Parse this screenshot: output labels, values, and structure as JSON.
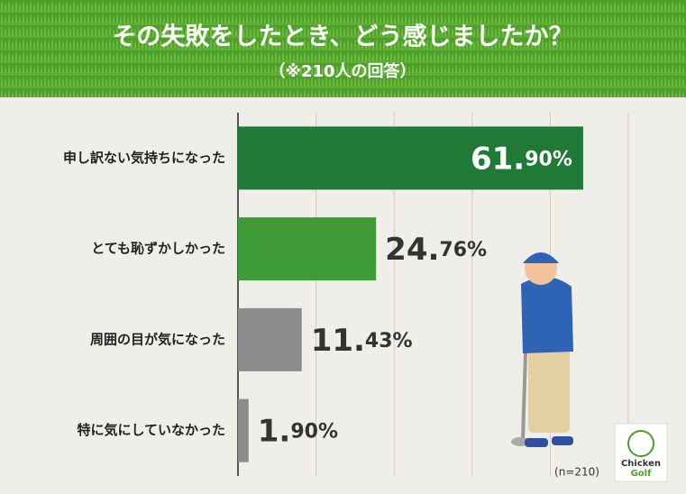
{
  "chart_data": {
    "type": "hbar",
    "title": "その失敗をしたとき、どう感じましたか？",
    "subtitle": "（※210人の回答）",
    "categories": [
      "申し訳ない気持ちになった",
      "とても恥ずかしかった",
      "周囲の目が気になった",
      "特に気にしていなかった"
    ],
    "values": [
      61.9,
      24.76,
      11.43,
      1.9
    ],
    "value_labels": [
      "61.90%",
      "24.76%",
      "11.43%",
      "1.90%"
    ],
    "colors": [
      "#1f7a35",
      "#3f9b3a",
      "#8c8c8c",
      "#8c8c8c"
    ],
    "xlim": [
      0,
      70
    ],
    "xticks": [
      0,
      14,
      28,
      42,
      56,
      70
    ],
    "grid": true,
    "note": "(n=210)",
    "logo": [
      "Chicken",
      "Golf"
    ]
  }
}
